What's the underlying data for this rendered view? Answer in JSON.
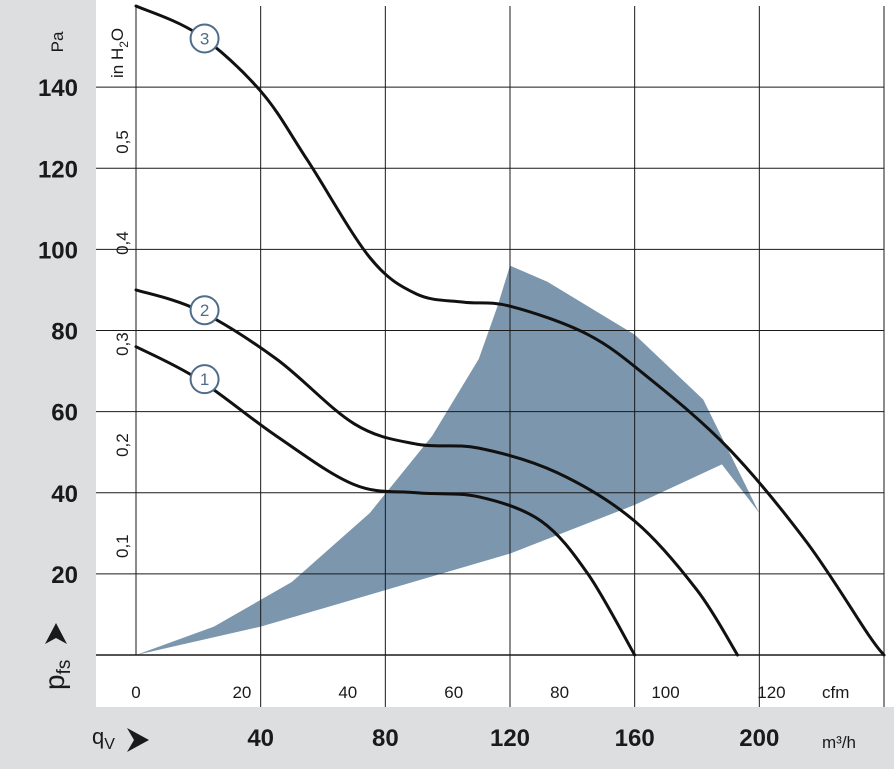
{
  "colors": {
    "band_gray": "#dcdee0",
    "grid": "#1a1a1a",
    "curve": "#111111",
    "area_fill": "#7b96ad",
    "marker_stroke": "#4f6d8a"
  },
  "chart_data": {
    "type": "line",
    "title": "",
    "y_axis": {
      "label": "p",
      "label_sub": "fs",
      "unit": "Pa",
      "ticks": [
        20,
        40,
        60,
        80,
        100,
        120,
        140
      ],
      "range": [
        0,
        160
      ]
    },
    "y_axis_secondary": {
      "unit": "in H",
      "unit_sub": "2",
      "unit_tail": "O",
      "ticks": [
        {
          "label": "0,1",
          "value": 0.1
        },
        {
          "label": "0,2",
          "value": 0.2
        },
        {
          "label": "0,3",
          "value": 0.3
        },
        {
          "label": "0,4",
          "value": 0.4
        },
        {
          "label": "0,5",
          "value": 0.5
        }
      ],
      "pa_per_unit": 249.09
    },
    "x_axis_secondary": {
      "unit": "cfm",
      "ticks": [
        0,
        20,
        40,
        60,
        80,
        100,
        120
      ],
      "m3h_per_unit": 1.699
    },
    "x_axis": {
      "label": "q",
      "label_sub": "V",
      "unit": "m³/h",
      "ticks": [
        40,
        80,
        120,
        160,
        200
      ],
      "range": [
        0,
        240
      ]
    },
    "series": [
      {
        "name": "1",
        "marker_at": [
          22,
          68
        ],
        "points": [
          [
            0,
            76
          ],
          [
            20,
            68
          ],
          [
            45,
            54
          ],
          [
            70,
            42
          ],
          [
            90,
            40
          ],
          [
            110,
            39
          ],
          [
            130,
            33
          ],
          [
            145,
            20
          ],
          [
            160,
            0
          ]
        ]
      },
      {
        "name": "2",
        "marker_at": [
          22,
          85
        ],
        "points": [
          [
            0,
            90
          ],
          [
            20,
            85
          ],
          [
            45,
            73
          ],
          [
            70,
            57
          ],
          [
            90,
            52
          ],
          [
            110,
            51
          ],
          [
            135,
            45
          ],
          [
            160,
            33
          ],
          [
            180,
            16
          ],
          [
            193,
            0
          ]
        ]
      },
      {
        "name": "3",
        "marker_at": [
          22,
          152
        ],
        "points": [
          [
            0,
            160
          ],
          [
            20,
            153
          ],
          [
            40,
            139
          ],
          [
            55,
            122
          ],
          [
            75,
            98
          ],
          [
            90,
            89
          ],
          [
            105,
            87
          ],
          [
            120,
            86
          ],
          [
            145,
            79
          ],
          [
            165,
            68
          ],
          [
            190,
            51
          ],
          [
            215,
            28
          ],
          [
            235,
            5
          ],
          [
            240,
            0
          ]
        ]
      }
    ],
    "operating_area": {
      "points": [
        [
          0,
          0
        ],
        [
          40,
          7
        ],
        [
          80,
          16
        ],
        [
          120,
          25
        ],
        [
          160,
          37
        ],
        [
          188,
          47
        ],
        [
          200,
          35
        ],
        [
          182,
          63
        ],
        [
          160,
          79
        ],
        [
          132,
          92
        ],
        [
          120,
          96
        ],
        [
          116,
          86
        ],
        [
          110,
          73
        ],
        [
          95,
          54
        ],
        [
          75,
          35
        ],
        [
          50,
          18
        ],
        [
          25,
          7
        ],
        [
          0,
          0
        ]
      ]
    }
  }
}
